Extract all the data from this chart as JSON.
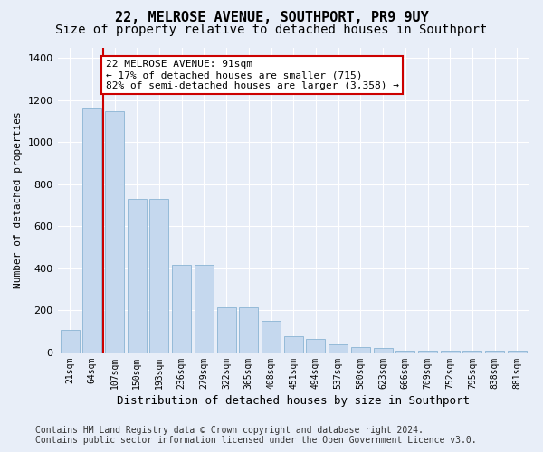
{
  "title1": "22, MELROSE AVENUE, SOUTHPORT, PR9 9UY",
  "title2": "Size of property relative to detached houses in Southport",
  "xlabel": "Distribution of detached houses by size in Southport",
  "ylabel": "Number of detached properties",
  "bar_labels": [
    "21sqm",
    "64sqm",
    "107sqm",
    "150sqm",
    "193sqm",
    "236sqm",
    "279sqm",
    "322sqm",
    "365sqm",
    "408sqm",
    "451sqm",
    "494sqm",
    "537sqm",
    "580sqm",
    "623sqm",
    "666sqm",
    "709sqm",
    "752sqm",
    "795sqm",
    "838sqm",
    "881sqm"
  ],
  "bar_values": [
    107,
    1160,
    1145,
    730,
    730,
    415,
    415,
    215,
    215,
    150,
    75,
    65,
    40,
    25,
    20,
    10,
    10,
    10,
    10,
    10,
    10
  ],
  "bar_color": "#c5d8ee",
  "bar_edge_color": "#8ab4d4",
  "vline_color": "#cc0000",
  "vline_x": 1.5,
  "annotation_text": "22 MELROSE AVENUE: 91sqm\n← 17% of detached houses are smaller (715)\n82% of semi-detached houses are larger (3,358) →",
  "annotation_box_facecolor": "#ffffff",
  "annotation_box_edgecolor": "#cc0000",
  "ylim": [
    0,
    1450
  ],
  "yticks": [
    0,
    200,
    400,
    600,
    800,
    1000,
    1200,
    1400
  ],
  "bg_color": "#e8eef8",
  "grid_color": "#ffffff",
  "footer1": "Contains HM Land Registry data © Crown copyright and database right 2024.",
  "footer2": "Contains public sector information licensed under the Open Government Licence v3.0.",
  "title1_fontsize": 11,
  "title2_fontsize": 10,
  "ylabel_fontsize": 8,
  "xlabel_fontsize": 9,
  "tick_fontsize": 7,
  "annot_fontsize": 8,
  "footer_fontsize": 7
}
